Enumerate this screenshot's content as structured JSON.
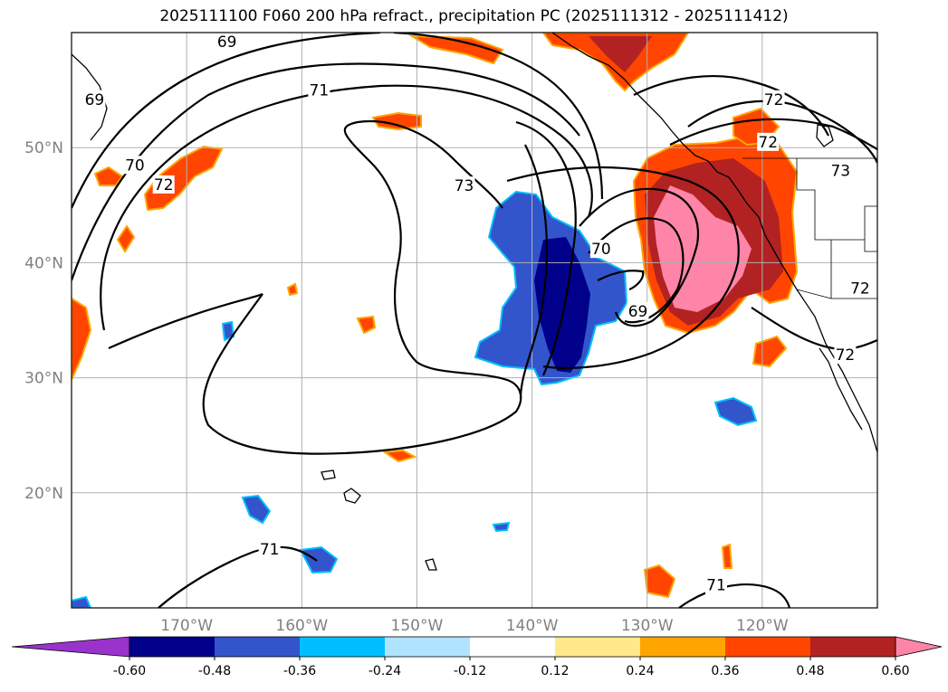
{
  "chart_data": {
    "type": "heatmap",
    "title": "2025111100 F060 200 hPa refract., precipitation PC (2025111312 - 2025111412)",
    "lon_range": [
      -180,
      -110
    ],
    "lat_range": [
      10,
      60
    ],
    "x_ticks": [
      {
        "value": -170,
        "label": "170°W"
      },
      {
        "value": -160,
        "label": "160°W"
      },
      {
        "value": -150,
        "label": "150°W"
      },
      {
        "value": -140,
        "label": "140°W"
      },
      {
        "value": -130,
        "label": "130°W"
      },
      {
        "value": -120,
        "label": "120°W"
      }
    ],
    "y_ticks": [
      {
        "value": 20,
        "label": "20°N"
      },
      {
        "value": 30,
        "label": "30°N"
      },
      {
        "value": 40,
        "label": "40°N"
      },
      {
        "value": 50,
        "label": "50°N"
      }
    ],
    "colorbar": {
      "levels": [
        "-0.60",
        "-0.48",
        "-0.36",
        "-0.24",
        "-0.12",
        "0.12",
        "0.24",
        "0.36",
        "0.48",
        "0.60"
      ],
      "colors": [
        "#9933cc",
        "#00008b",
        "#3355cc",
        "#00bfff",
        "#aee4ff",
        "#ffffff",
        "#ffe98a",
        "#ffa500",
        "#ff4500",
        "#b22222",
        "#ff85a8"
      ],
      "extend": "both"
    },
    "contour_labels": [
      {
        "text": "69",
        "lon": -166.5,
        "lat": 59.2
      },
      {
        "text": "71",
        "lon": -158.5,
        "lat": 55.0
      },
      {
        "text": "69",
        "lon": -178.0,
        "lat": 54.2
      },
      {
        "text": "70",
        "lon": -174.5,
        "lat": 48.5
      },
      {
        "text": "72",
        "lon": -172.0,
        "lat": 46.8
      },
      {
        "text": "73",
        "lon": -145.9,
        "lat": 46.7
      },
      {
        "text": "70",
        "lon": -134.0,
        "lat": 41.2
      },
      {
        "text": "69",
        "lon": -130.8,
        "lat": 35.8
      },
      {
        "text": "72",
        "lon": -119.0,
        "lat": 54.2
      },
      {
        "text": "72",
        "lon": -119.5,
        "lat": 50.5
      },
      {
        "text": "73",
        "lon": -113.2,
        "lat": 48.0
      },
      {
        "text": "72",
        "lon": -111.5,
        "lat": 37.8
      },
      {
        "text": "72",
        "lon": -112.8,
        "lat": 32.0
      },
      {
        "text": "71",
        "lon": -162.8,
        "lat": 15.1
      },
      {
        "text": "71",
        "lon": -124.0,
        "lat": 12.0
      }
    ]
  }
}
